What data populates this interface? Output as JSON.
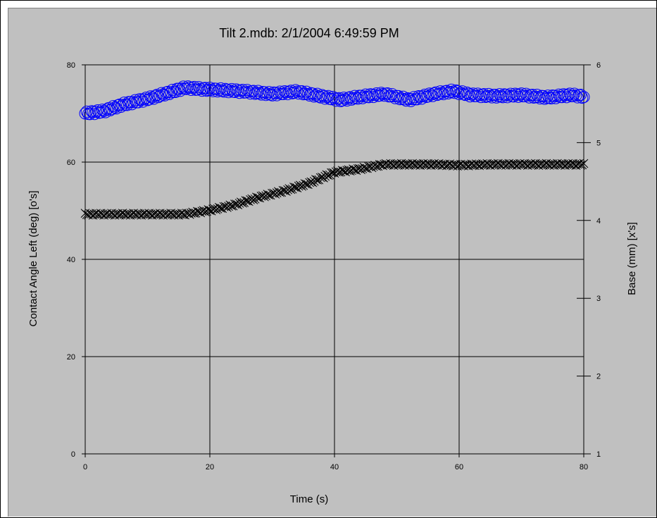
{
  "chart_data": {
    "type": "scatter",
    "title": "Tilt 2.mdb: 2/1/2004 6:49:59 PM",
    "xlabel": "Time (s)",
    "ylabel": "Contact Angle Left (deg) [o's]",
    "y2label": "Base (mm) [x's]",
    "xlim": [
      0,
      80
    ],
    "ylim": [
      0,
      80
    ],
    "y2lim": [
      1,
      6
    ],
    "x_ticks": [
      0,
      20,
      40,
      60,
      80
    ],
    "y_ticks": [
      0,
      20,
      40,
      60,
      80
    ],
    "y2_ticks": [
      1,
      2,
      3,
      4,
      5,
      6
    ],
    "grid": true,
    "series": [
      {
        "marker": "circle",
        "axis": "left",
        "color": "#0000ff",
        "keypoints": [
          [
            0,
            70.0
          ],
          [
            3,
            70.5
          ],
          [
            6,
            71.8
          ],
          [
            10,
            73.0
          ],
          [
            14,
            74.5
          ],
          [
            16,
            75.3
          ],
          [
            19,
            75.0
          ],
          [
            22,
            74.8
          ],
          [
            26,
            74.5
          ],
          [
            30,
            74.0
          ],
          [
            34,
            74.5
          ],
          [
            38,
            73.5
          ],
          [
            41,
            72.8
          ],
          [
            44,
            73.4
          ],
          [
            48,
            74.0
          ],
          [
            52,
            72.8
          ],
          [
            56,
            74.0
          ],
          [
            59,
            74.6
          ],
          [
            62,
            73.8
          ],
          [
            66,
            73.6
          ],
          [
            70,
            73.8
          ],
          [
            74,
            73.3
          ],
          [
            78,
            73.8
          ],
          [
            80,
            73.5
          ]
        ]
      },
      {
        "marker": "x",
        "axis": "right",
        "color": "#000000",
        "keypoints": [
          [
            0,
            4.08
          ],
          [
            8,
            4.08
          ],
          [
            16,
            4.08
          ],
          [
            20,
            4.13
          ],
          [
            24,
            4.2
          ],
          [
            28,
            4.3
          ],
          [
            32,
            4.38
          ],
          [
            36,
            4.48
          ],
          [
            40,
            4.62
          ],
          [
            44,
            4.66
          ],
          [
            48,
            4.72
          ],
          [
            52,
            4.72
          ],
          [
            56,
            4.72
          ],
          [
            60,
            4.71
          ],
          [
            65,
            4.72
          ],
          [
            70,
            4.72
          ],
          [
            75,
            4.72
          ],
          [
            80,
            4.72
          ]
        ]
      }
    ]
  }
}
